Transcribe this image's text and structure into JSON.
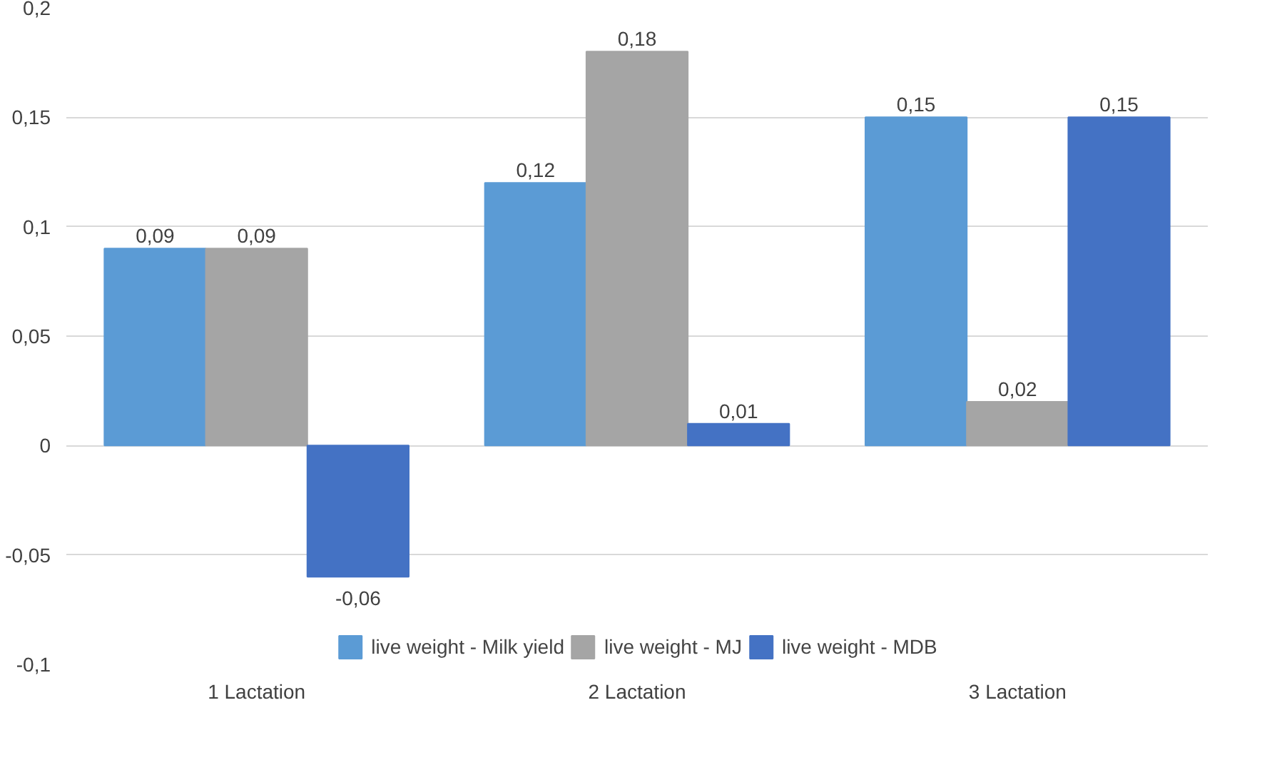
{
  "chart_data": {
    "type": "bar",
    "categories": [
      "1 Lactation",
      "2 Lactation",
      "3 Lactation"
    ],
    "series": [
      {
        "name": "live weight - Milk yield",
        "color": "#5b9bd5",
        "values": [
          0.09,
          0.12,
          0.15
        ],
        "value_labels": [
          "0,09",
          "0,12",
          "0,15"
        ]
      },
      {
        "name": "live weight - MJ",
        "color": "#a5a5a5",
        "values": [
          0.09,
          0.18,
          0.02
        ],
        "value_labels": [
          "0,09",
          "0,18",
          "0,02"
        ]
      },
      {
        "name": "live weight - MDB",
        "color": "#4472c4",
        "values": [
          -0.06,
          0.01,
          0.15
        ],
        "value_labels": [
          "-0,06",
          "0,01",
          "0,15"
        ]
      }
    ],
    "ylim": [
      -0.1,
      0.2
    ],
    "yticks": [
      {
        "value": -0.1,
        "label": "-0,1"
      },
      {
        "value": -0.05,
        "label": "-0,05"
      },
      {
        "value": 0,
        "label": "0"
      },
      {
        "value": 0.05,
        "label": "0,05"
      },
      {
        "value": 0.1,
        "label": "0,1"
      },
      {
        "value": 0.15,
        "label": "0,15"
      },
      {
        "value": 0.2,
        "label": "0,2"
      }
    ],
    "grid": "y",
    "legend": "bottom"
  }
}
